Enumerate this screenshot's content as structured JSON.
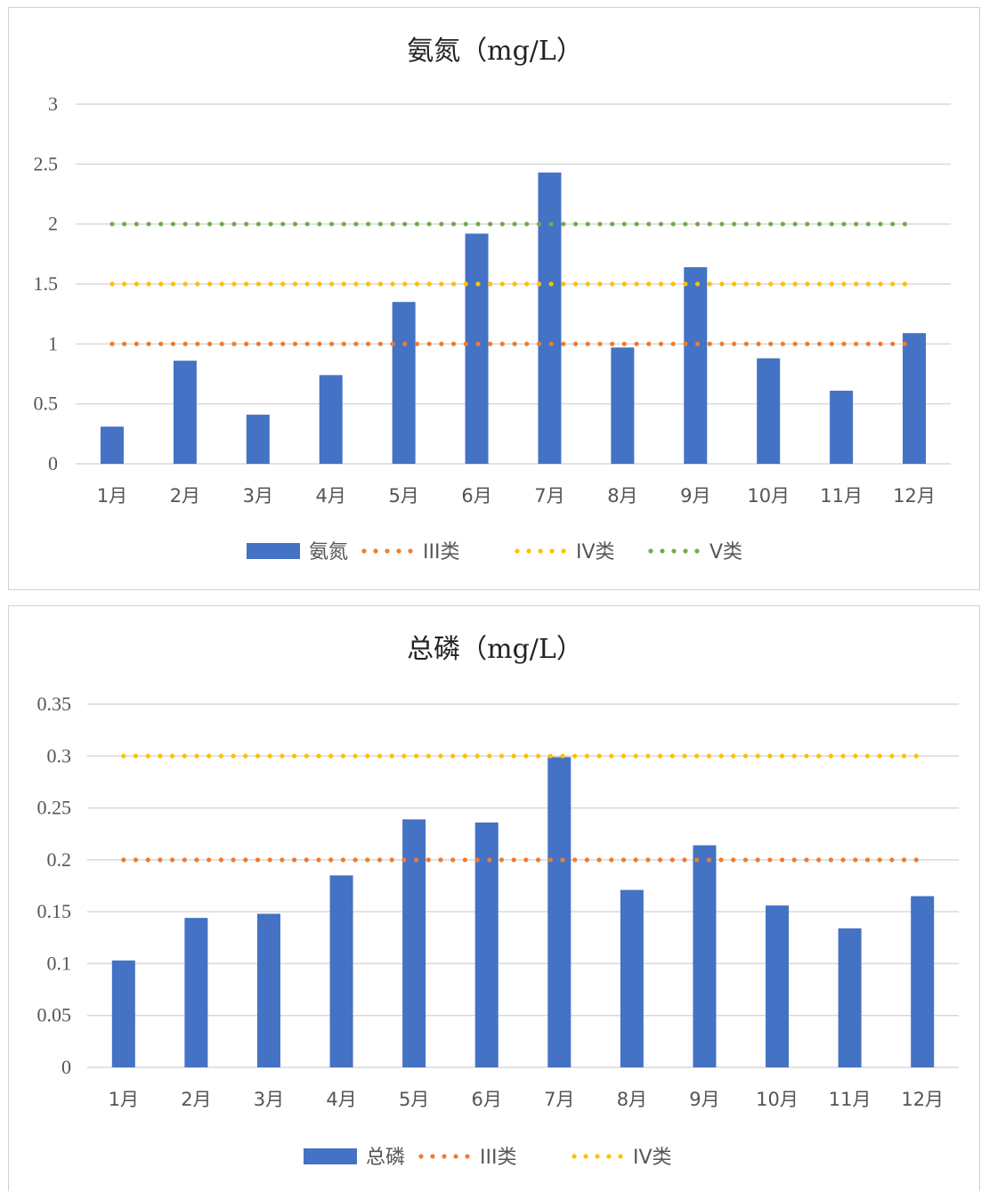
{
  "chart_data": [
    {
      "type": "bar",
      "title": "氨氮（mg/L）",
      "categories": [
        "1月",
        "2月",
        "3月",
        "4月",
        "5月",
        "6月",
        "7月",
        "8月",
        "9月",
        "10月",
        "11月",
        "12月"
      ],
      "series": [
        {
          "name": "氨氮",
          "kind": "bar",
          "color": "#4472C4",
          "values": [
            0.31,
            0.86,
            0.41,
            0.74,
            1.35,
            1.92,
            2.43,
            0.97,
            1.64,
            0.88,
            0.61,
            1.09
          ]
        },
        {
          "name": "III类",
          "kind": "dotted-line",
          "color": "#ED7D31",
          "values": [
            1,
            1,
            1,
            1,
            1,
            1,
            1,
            1,
            1,
            1,
            1,
            1
          ]
        },
        {
          "name": "IV类",
          "kind": "dotted-line",
          "color": "#FFC000",
          "values": [
            1.5,
            1.5,
            1.5,
            1.5,
            1.5,
            1.5,
            1.5,
            1.5,
            1.5,
            1.5,
            1.5,
            1.5
          ]
        },
        {
          "name": "V类",
          "kind": "dotted-line",
          "color": "#70AD47",
          "values": [
            2,
            2,
            2,
            2,
            2,
            2,
            2,
            2,
            2,
            2,
            2,
            2
          ]
        }
      ],
      "yticks": [
        "0",
        "0.5",
        "1",
        "1.5",
        "2",
        "2.5",
        "3"
      ],
      "ylim": [
        0,
        3
      ],
      "grid": true,
      "legend": "bottom"
    },
    {
      "type": "bar",
      "title": "总磷（mg/L）",
      "categories": [
        "1月",
        "2月",
        "3月",
        "4月",
        "5月",
        "6月",
        "7月",
        "8月",
        "9月",
        "10月",
        "11月",
        "12月"
      ],
      "series": [
        {
          "name": "总磷",
          "kind": "bar",
          "color": "#4472C4",
          "values": [
            0.103,
            0.144,
            0.148,
            0.185,
            0.239,
            0.236,
            0.299,
            0.171,
            0.214,
            0.156,
            0.134,
            0.165
          ]
        },
        {
          "name": "III类",
          "kind": "dotted-line",
          "color": "#ED7D31",
          "values": [
            0.2,
            0.2,
            0.2,
            0.2,
            0.2,
            0.2,
            0.2,
            0.2,
            0.2,
            0.2,
            0.2,
            0.2
          ]
        },
        {
          "name": "IV类",
          "kind": "dotted-line",
          "color": "#FFC000",
          "values": [
            0.3,
            0.3,
            0.3,
            0.3,
            0.3,
            0.3,
            0.3,
            0.3,
            0.3,
            0.3,
            0.3,
            0.3
          ]
        }
      ],
      "yticks": [
        "0",
        "0.05",
        "0.1",
        "0.15",
        "0.2",
        "0.25",
        "0.3",
        "0.35"
      ],
      "ylim": [
        0,
        0.35
      ],
      "grid": true,
      "legend": "bottom"
    }
  ]
}
